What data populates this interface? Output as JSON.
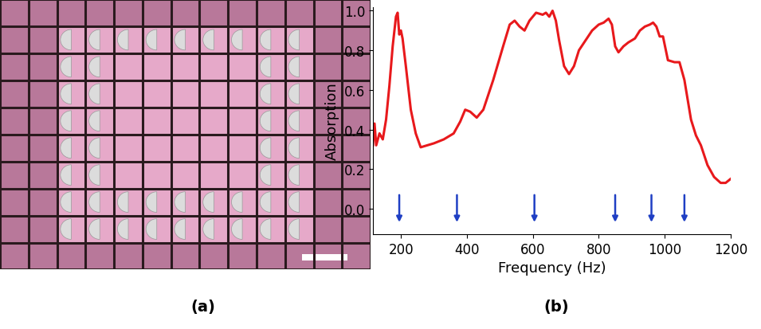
{
  "panels": [
    "(a)",
    "(b)"
  ],
  "chart_data": {
    "type": "line",
    "x_label": "Frequency (Hz)",
    "y_label": "Absorption",
    "x": [
      115,
      120,
      125,
      135,
      145,
      155,
      165,
      175,
      185,
      190,
      195,
      200,
      205,
      215,
      230,
      245,
      260,
      280,
      300,
      330,
      360,
      380,
      395,
      410,
      430,
      450,
      480,
      510,
      530,
      545,
      560,
      575,
      590,
      610,
      630,
      640,
      650,
      660,
      670,
      680,
      695,
      710,
      725,
      740,
      760,
      780,
      800,
      815,
      830,
      840,
      850,
      860,
      875,
      890,
      910,
      925,
      940,
      955,
      965,
      975,
      985,
      995,
      1010,
      1030,
      1045,
      1060,
      1080,
      1095,
      1110,
      1130,
      1150,
      1170,
      1185,
      1200
    ],
    "values": [
      0.32,
      0.43,
      0.32,
      0.38,
      0.35,
      0.45,
      0.62,
      0.82,
      0.97,
      0.99,
      0.88,
      0.9,
      0.86,
      0.72,
      0.5,
      0.38,
      0.31,
      0.32,
      0.33,
      0.35,
      0.38,
      0.44,
      0.5,
      0.49,
      0.46,
      0.5,
      0.65,
      0.82,
      0.93,
      0.95,
      0.92,
      0.9,
      0.95,
      0.99,
      0.98,
      0.99,
      0.97,
      1.0,
      0.95,
      0.85,
      0.72,
      0.68,
      0.72,
      0.8,
      0.85,
      0.9,
      0.93,
      0.94,
      0.96,
      0.93,
      0.82,
      0.79,
      0.82,
      0.84,
      0.86,
      0.9,
      0.92,
      0.93,
      0.94,
      0.92,
      0.87,
      0.87,
      0.75,
      0.74,
      0.74,
      0.65,
      0.45,
      0.37,
      0.32,
      0.22,
      0.16,
      0.13,
      0.13,
      0.15
    ],
    "color": "#e8191c",
    "arrows_x": [
      195,
      370,
      605,
      850,
      960,
      1060
    ],
    "xlim": [
      115,
      1200
    ],
    "xticks": [
      200,
      400,
      600,
      800,
      1000,
      1200
    ],
    "ylim": [
      -0.13,
      1.02
    ],
    "yticks": [
      0.0,
      0.2,
      0.4,
      0.6,
      0.8,
      1.0
    ],
    "grid": false
  }
}
